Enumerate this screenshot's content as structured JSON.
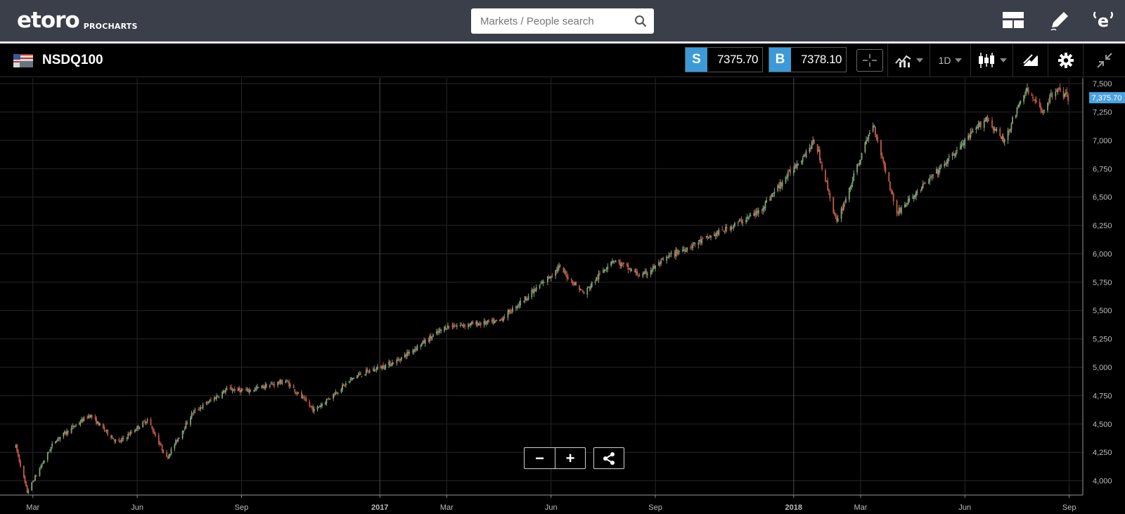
{
  "header": {
    "logo_text": "etoro",
    "logo_sub": "PROCHARTS",
    "search_placeholder": "Markets / People search",
    "icons": [
      "layout-icon",
      "pencil-icon",
      "etoro-profile-icon"
    ]
  },
  "instrument": {
    "name": "NSDQ100",
    "flag_icon": "us-flag-icon",
    "sell_label": "S",
    "sell_price": "7375.70",
    "buy_label": "B",
    "buy_price": "7378.10",
    "timeframe": "1D",
    "tool_icons": [
      "crosshair-icon",
      "compare-icon",
      "candlestick-icon",
      "drawing-icon",
      "gear-icon",
      "collapse-icon"
    ]
  },
  "chart_data": {
    "type": "candlestick",
    "instrument": "NSDQ100",
    "interval": "1D",
    "x_ticks": [
      "Mar",
      "Jun",
      "Sep",
      "2017",
      "Mar",
      "Jun",
      "Sep",
      "2018",
      "Mar",
      "Jun",
      "Sep"
    ],
    "y_ticks": [
      "4,000",
      "4,250",
      "4,500",
      "4,750",
      "5,000",
      "5,250",
      "5,500",
      "5,750",
      "6,000",
      "6,250",
      "6,500",
      "6,750",
      "7,000",
      "7,250",
      "7,500"
    ],
    "ylim": [
      3880,
      7550
    ],
    "current_price_label": "7,375.70",
    "current_price": 7375.7,
    "grid": true,
    "up_color": "#7fa37a",
    "down_color": "#c25a4a",
    "approx_close_path": [
      {
        "date": "2016-02-15",
        "close": 4300
      },
      {
        "date": "2016-02-25",
        "close": 3900
      },
      {
        "date": "2016-03-20",
        "close": 4350
      },
      {
        "date": "2016-04-20",
        "close": 4580
      },
      {
        "date": "2016-05-15",
        "close": 4330
      },
      {
        "date": "2016-06-10",
        "close": 4540
      },
      {
        "date": "2016-06-27",
        "close": 4200
      },
      {
        "date": "2016-07-20",
        "close": 4600
      },
      {
        "date": "2016-08-20",
        "close": 4810
      },
      {
        "date": "2016-09-05",
        "close": 4790
      },
      {
        "date": "2016-10-10",
        "close": 4880
      },
      {
        "date": "2016-11-04",
        "close": 4620
      },
      {
        "date": "2016-12-10",
        "close": 4920
      },
      {
        "date": "2017-01-15",
        "close": 5050
      },
      {
        "date": "2017-03-01",
        "close": 5360
      },
      {
        "date": "2017-04-15",
        "close": 5400
      },
      {
        "date": "2017-05-20",
        "close": 5700
      },
      {
        "date": "2017-06-08",
        "close": 5880
      },
      {
        "date": "2017-06-30",
        "close": 5650
      },
      {
        "date": "2017-07-25",
        "close": 5950
      },
      {
        "date": "2017-08-20",
        "close": 5800
      },
      {
        "date": "2017-09-15",
        "close": 5990
      },
      {
        "date": "2017-10-30",
        "close": 6200
      },
      {
        "date": "2017-12-01",
        "close": 6370
      },
      {
        "date": "2018-01-20",
        "close": 7000
      },
      {
        "date": "2018-02-08",
        "close": 6270
      },
      {
        "date": "2018-03-12",
        "close": 7150
      },
      {
        "date": "2018-04-02",
        "close": 6360
      },
      {
        "date": "2018-05-15",
        "close": 6800
      },
      {
        "date": "2018-06-20",
        "close": 7200
      },
      {
        "date": "2018-07-05",
        "close": 6990
      },
      {
        "date": "2018-07-25",
        "close": 7450
      },
      {
        "date": "2018-08-08",
        "close": 7250
      },
      {
        "date": "2018-08-20",
        "close": 7460
      },
      {
        "date": "2018-08-31",
        "close": 7376
      }
    ]
  },
  "controls": {
    "zoom_out_label": "−",
    "zoom_in_label": "+",
    "share_icon": "share-icon"
  }
}
